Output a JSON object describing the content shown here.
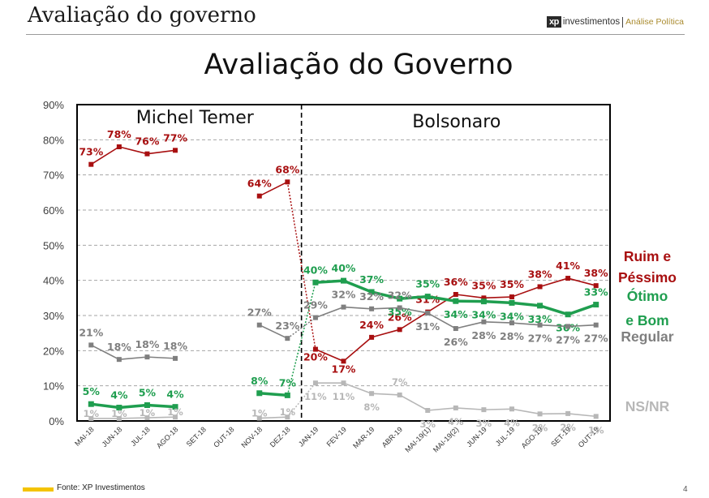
{
  "header": {
    "title": "Avaliação do governo",
    "logo_mark": "xp",
    "logo_brand": "investimentos",
    "logo_area": "Análise Política"
  },
  "footer": {
    "source": "Fonte: XP Investimentos",
    "page_number": "4"
  },
  "colors": {
    "ruim": "#a80f10",
    "otimo": "#1f9e4f",
    "regular": "#7f7f7f",
    "nsnr": "#b7b7b7"
  },
  "chart_data": {
    "type": "line",
    "title": "Avaliação do Governo",
    "categories": [
      "MAI-18",
      "JUN-18",
      "JUL-18",
      "AGO-18",
      "SET-18",
      "OUT-18",
      "NOV-18",
      "DEZ-18",
      "JAN-19",
      "FEV-19",
      "MAR-19",
      "ABR-19",
      "MAI-19(1)",
      "MAI-19(2)",
      "JUN-19",
      "JUL-19",
      "AGO-19",
      "SET-19",
      "OUT-19"
    ],
    "ylim": [
      0,
      90
    ],
    "yticks": [
      "0%",
      "10%",
      "20%",
      "30%",
      "40%",
      "50%",
      "60%",
      "70%",
      "80%",
      "90%"
    ],
    "grid": true,
    "periods": [
      {
        "label": "Michel Temer",
        "from": "MAI-18",
        "to": "DEZ-18"
      },
      {
        "label": "Bolsonaro",
        "from": "JAN-19",
        "to": "OUT-19"
      }
    ],
    "series": [
      {
        "name": "Ruim e Péssimo",
        "label_lines": [
          "Ruim e",
          "Péssimo"
        ],
        "color": "#a80f10",
        "values": [
          73,
          78,
          76,
          77,
          null,
          null,
          64,
          68,
          20,
          17,
          24,
          26,
          31,
          36,
          35,
          35,
          38,
          41,
          38
        ],
        "point_values": [
          73,
          78,
          76,
          77,
          null,
          null,
          64,
          68,
          20.4,
          17,
          23.8,
          26,
          31,
          36,
          35,
          35.3,
          38.2,
          40.6,
          38.5
        ]
      },
      {
        "name": "Ótimo e Bom",
        "label_lines": [
          "Ótimo",
          "e Bom"
        ],
        "color": "#1f9e4f",
        "values": [
          5,
          4,
          5,
          4,
          null,
          null,
          8,
          7,
          40,
          40,
          37,
          35,
          35,
          34,
          34,
          34,
          33,
          30,
          33
        ],
        "point_values": [
          4.8,
          3.8,
          4.5,
          4,
          null,
          null,
          7.9,
          7.3,
          39.4,
          39.9,
          36.7,
          34.8,
          35.4,
          34.1,
          34,
          33.6,
          32.8,
          30.3,
          33.1
        ]
      },
      {
        "name": "Regular",
        "label_lines": [
          "Regular"
        ],
        "color": "#7f7f7f",
        "values": [
          21,
          18,
          18,
          18,
          null,
          null,
          27,
          23,
          29,
          32,
          32,
          32,
          31,
          26,
          28,
          28,
          27,
          27,
          27
        ],
        "point_values": [
          21.6,
          17.5,
          18.2,
          17.8,
          null,
          null,
          27.3,
          23.5,
          29.4,
          32.4,
          31.9,
          32.2,
          30.7,
          26.3,
          28.2,
          27.9,
          27.3,
          26.9,
          27.3
        ]
      },
      {
        "name": "NS/NR",
        "label_lines": [
          "NS/NR"
        ],
        "color": "#b7b7b7",
        "values": [
          1,
          1,
          1,
          1,
          null,
          null,
          1,
          1,
          11,
          11,
          8,
          7,
          3,
          4,
          3,
          4,
          2,
          2,
          1
        ],
        "point_values": [
          0.7,
          0.7,
          0.9,
          1.1,
          null,
          null,
          0.8,
          1.1,
          10.8,
          10.8,
          7.8,
          7.4,
          3,
          3.7,
          3.2,
          3.4,
          2,
          2.1,
          1.3
        ]
      }
    ]
  }
}
